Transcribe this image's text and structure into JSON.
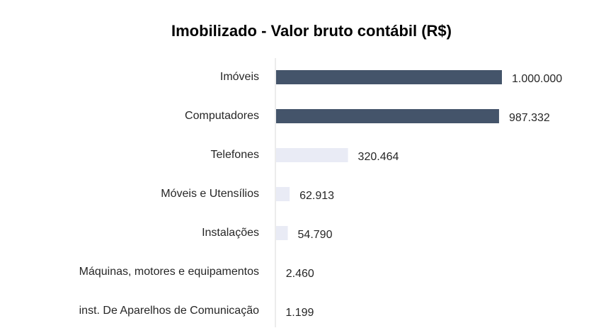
{
  "chart_data": {
    "type": "bar",
    "orientation": "horizontal",
    "title": "Imobilizado - Valor bruto contábil (R$)",
    "categories": [
      "Imóveis",
      "Computadores",
      "Telefones",
      "Móveis e Utensílios",
      "Instalações",
      "Máquinas, motores e equipamentos",
      "inst. De Aparelhos de Comunicação"
    ],
    "values": [
      1000000,
      987332,
      320464,
      62913,
      54790,
      2460,
      1199
    ],
    "value_labels": [
      "1.000.000",
      "987.332",
      "320.464",
      "62.913",
      "54.790",
      "2.460",
      "1.199"
    ],
    "colors": [
      "#44546a",
      "#44546a",
      "#e9ebf5",
      "#e9ebf5",
      "#e9ebf5",
      "#e9ebf5",
      "#e9ebf5"
    ]
  }
}
